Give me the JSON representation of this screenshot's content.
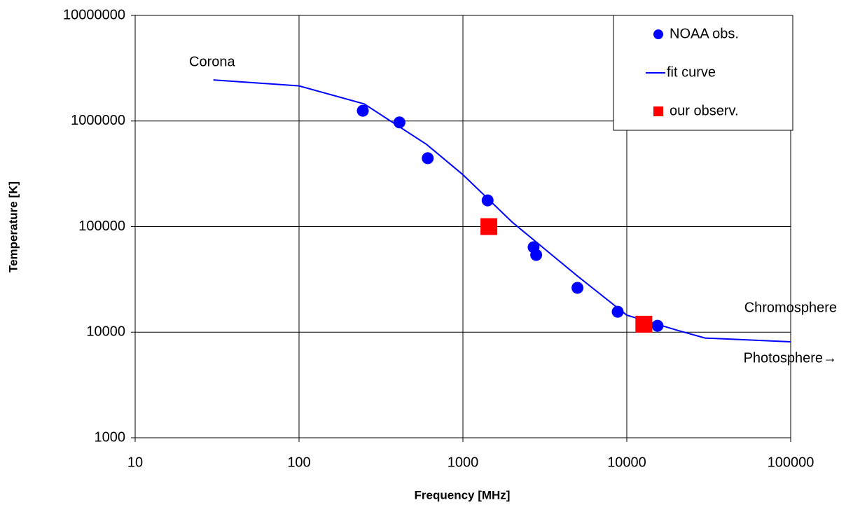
{
  "chart_data": {
    "type": "scatter",
    "x_label": "Frequency [MHz]",
    "y_label": "Temperature [K]",
    "x_log": true,
    "y_log": true,
    "grid": true,
    "legend": "top-right",
    "xlim": [
      10,
      100000
    ],
    "xticks": [
      10,
      100,
      1000,
      10000,
      100000
    ],
    "ylim": [
      1000,
      10000000
    ],
    "yticks": [
      1000,
      10000,
      100000,
      1000000,
      10000000
    ],
    "series": [
      {
        "name": "NOAA obs.",
        "color": "#0000ff",
        "mode": "markers",
        "marker": "circle",
        "x": [
          245,
          410,
          610,
          1415,
          2700,
          2800,
          5000,
          8800,
          15400
        ],
        "values": [
          1250000,
          970000,
          444000,
          177000,
          63700,
          53900,
          26300,
          15600,
          11500
        ]
      },
      {
        "name": "fit curve",
        "color": "#0000ff",
        "mode": "line",
        "x": [
          30,
          100,
          250,
          600,
          1000,
          2000,
          5000,
          10000,
          20000,
          30000,
          100000
        ],
        "values": [
          2450000,
          2150000,
          1450000,
          600000,
          310000,
          110000,
          34000,
          14500,
          10500,
          8800,
          8100
        ]
      },
      {
        "name": "our observ.",
        "color": "#ff0000",
        "mode": "markers",
        "marker": "square",
        "x": [
          1440,
          12700
        ],
        "values": [
          100000,
          11900
        ]
      }
    ],
    "annotations": [
      "Corona",
      "Chromosphere",
      "Photosphere→"
    ]
  }
}
